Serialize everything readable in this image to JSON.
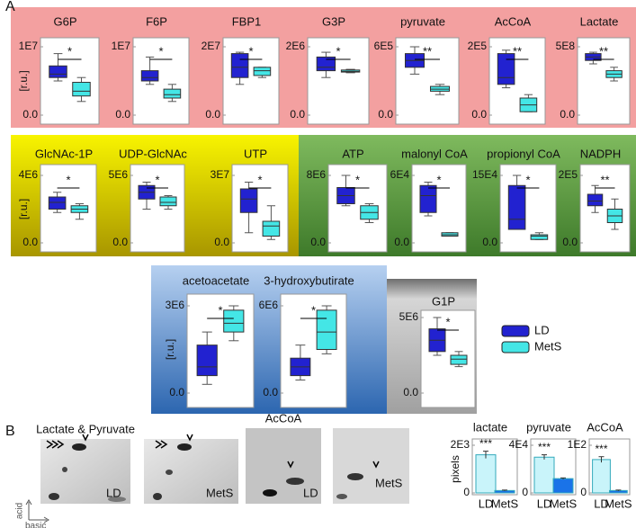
{
  "panels": [
    "A",
    "B"
  ],
  "legend": [
    {
      "name": "LD",
      "color": "#2222d0"
    },
    {
      "name": "MetS",
      "color": "#44e6e6"
    }
  ],
  "chart_data": [
    {
      "type": "box",
      "title": "G6P",
      "ylabel": "[r.u.]",
      "ylim": [
        0,
        10000000.0
      ],
      "yticks": [
        {
          "value": 0,
          "label": "0.0"
        },
        {
          "value": 10000000.0,
          "label": "1E7"
        }
      ],
      "sig": "*",
      "boxes": [
        {
          "whislo": 5000000.0,
          "q1": 5500000.0,
          "med": 6000000.0,
          "q3": 7200000.0,
          "whishi": 9000000.0
        },
        {
          "whislo": 2000000.0,
          "q1": 2800000.0,
          "med": 3500000.0,
          "q3": 4800000.0,
          "whishi": 5500000.0
        }
      ]
    },
    {
      "type": "box",
      "title": "F6P",
      "ylim": [
        0,
        10000000.0
      ],
      "yticks": [
        {
          "value": 0,
          "label": "0.0"
        },
        {
          "value": 10000000.0,
          "label": "1E7"
        }
      ],
      "sig": "*",
      "boxes": [
        {
          "whislo": 4500000.0,
          "q1": 5000000.0,
          "med": 5500000.0,
          "q3": 6500000.0,
          "whishi": 8500000.0
        },
        {
          "whislo": 2000000.0,
          "q1": 2500000.0,
          "med": 3000000.0,
          "q3": 3800000.0,
          "whishi": 4500000.0
        }
      ]
    },
    {
      "type": "box",
      "title": "FBP1",
      "ylim": [
        0,
        20000000.0
      ],
      "yticks": [
        {
          "value": 0,
          "label": "0.0"
        },
        {
          "value": 20000000.0,
          "label": "2E7"
        }
      ],
      "sig": "*",
      "boxes": [
        {
          "whislo": 9000000.0,
          "q1": 11000000.0,
          "med": 14000000.0,
          "q3": 18000000.0,
          "whishi": 18400000.0
        },
        {
          "whislo": 11000000.0,
          "q1": 11600000.0,
          "med": 13000000.0,
          "q3": 14000000.0,
          "whishi": 14000000.0
        }
      ]
    },
    {
      "type": "box",
      "title": "G3P",
      "ylim": [
        0,
        2000000.0
      ],
      "yticks": [
        {
          "value": 0,
          "label": "0.0"
        },
        {
          "value": 2000000.0,
          "label": "2E6"
        }
      ],
      "sig": "*",
      "boxes": [
        {
          "whislo": 1100000.0,
          "q1": 1300000.0,
          "med": 1400000.0,
          "q3": 1700000.0,
          "whishi": 1840000.0
        },
        {
          "whislo": 1240000.0,
          "q1": 1260000.0,
          "med": 1280000.0,
          "q3": 1320000.0,
          "whishi": 1340000.0
        }
      ]
    },
    {
      "type": "box",
      "title": "pyruvate",
      "ylim": [
        0,
        600000.0
      ],
      "yticks": [
        {
          "value": 0,
          "label": "0.0"
        },
        {
          "value": 600000.0,
          "label": "6E5"
        }
      ],
      "sig": "**",
      "boxes": [
        {
          "whislo": 360000.0,
          "q1": 420000.0,
          "med": 480000.0,
          "q3": 540000.0,
          "whishi": 600000.0
        },
        {
          "whislo": 180000.0,
          "q1": 210000.0,
          "med": 228000.0,
          "q3": 252000.0,
          "whishi": 270000.0
        }
      ]
    },
    {
      "type": "box",
      "title": "AcCoA",
      "ylim": [
        0,
        200000.0
      ],
      "yticks": [
        {
          "value": 0,
          "label": "0.0"
        },
        {
          "value": 200000.0,
          "label": "2E5"
        }
      ],
      "sig": "**",
      "boxes": [
        {
          "whislo": 80000.0,
          "q1": 90000.0,
          "med": 110000.0,
          "q3": 180000.0,
          "whishi": 190000.0
        },
        {
          "whislo": 10000.0,
          "q1": 10000.0,
          "med": 30000.0,
          "q3": 50000.0,
          "whishi": 60000.0
        }
      ]
    },
    {
      "type": "box",
      "title": "Lactate",
      "ylim": [
        0,
        500000000.0
      ],
      "yticks": [
        {
          "value": 0,
          "label": "0.0"
        },
        {
          "value": 500000000.0,
          "label": "5E8"
        }
      ],
      "sig": "**",
      "boxes": [
        {
          "whislo": 375000000.0,
          "q1": 400000000.0,
          "med": 425000000.0,
          "q3": 450000000.0,
          "whishi": 460000000.0
        },
        {
          "whislo": 250000000.0,
          "q1": 275000000.0,
          "med": 300000000.0,
          "q3": 325000000.0,
          "whishi": 350000000.0
        }
      ]
    },
    {
      "type": "box",
      "title": "GlcNAc-1P",
      "ylabel": "[r.u.]",
      "ylim": [
        0,
        4000000.0
      ],
      "yticks": [
        {
          "value": 0,
          "label": "0.0"
        },
        {
          "value": 4000000.0,
          "label": "4E6"
        }
      ],
      "sig": "*",
      "boxes": [
        {
          "whislo": 1800000.0,
          "q1": 2000000.0,
          "med": 2400000.0,
          "q3": 2720000.0,
          "whishi": 3000000.0
        },
        {
          "whislo": 1400000.0,
          "q1": 1800000.0,
          "med": 2000000.0,
          "q3": 2200000.0,
          "whishi": 2320000.0
        }
      ]
    },
    {
      "type": "box",
      "title": "UDP-GlcNAc",
      "ylim": [
        0,
        5000000.0
      ],
      "yticks": [
        {
          "value": 0,
          "label": "0.0"
        },
        {
          "value": 5000000.0,
          "label": "5E6"
        }
      ],
      "sig": "*",
      "boxes": [
        {
          "whislo": 2500000.0,
          "q1": 3250000.0,
          "med": 3750000.0,
          "q3": 4250000.0,
          "whishi": 4500000.0
        },
        {
          "whislo": 2500000.0,
          "q1": 2750000.0,
          "med": 3000000.0,
          "q3": 3400000.0,
          "whishi": 3500000.0
        }
      ]
    },
    {
      "type": "box",
      "title": "UTP",
      "ylim": [
        0,
        30000000.0
      ],
      "yticks": [
        {
          "value": 0,
          "label": "0.0"
        },
        {
          "value": 30000000.0,
          "label": "3E7"
        }
      ],
      "sig": "*",
      "boxes": [
        {
          "whislo": 4500000.0,
          "q1": 13500000.0,
          "med": 19500000.0,
          "q3": 24000000.0,
          "whishi": 27000000.0
        },
        {
          "whislo": 1500000.0,
          "q1": 3000000.0,
          "med": 7500000.0,
          "q3": 9600000.0,
          "whishi": 16500000.0
        }
      ]
    },
    {
      "type": "box",
      "title": "ATP",
      "ylim": [
        0,
        8000000.0
      ],
      "yticks": [
        {
          "value": 0,
          "label": "0.0"
        },
        {
          "value": 8000000.0,
          "label": "8E6"
        }
      ],
      "sig": "*",
      "boxes": [
        {
          "whislo": 4400000.0,
          "q1": 4640000.0,
          "med": 5600000.0,
          "q3": 6560000.0,
          "whishi": 8000000.0
        },
        {
          "whislo": 2400000.0,
          "q1": 2800000.0,
          "med": 3600000.0,
          "q3": 4400000.0,
          "whishi": 4640000.0
        }
      ]
    },
    {
      "type": "box",
      "title": "malonyl CoA",
      "ylim": [
        0,
        60000.0
      ],
      "yticks": [
        {
          "value": 0,
          "label": "0.0"
        },
        {
          "value": 60000.0,
          "label": "6E4"
        }
      ],
      "sig": "*",
      "boxes": [
        {
          "whislo": 24000.0,
          "q1": 27000.0,
          "med": 42000.0,
          "q3": 51000.0,
          "whishi": 54000.0
        },
        {
          "whislo": 6000.0,
          "q1": 6000.0,
          "med": 7200.0,
          "q3": 9000.0,
          "whishi": 9000.0
        }
      ]
    },
    {
      "type": "box",
      "title": "propionyl CoA",
      "ylim": [
        0,
        150000.0
      ],
      "yticks": [
        {
          "value": 0,
          "label": "0.0"
        },
        {
          "value": 150000.0,
          "label": "15E4"
        }
      ],
      "sig": "*",
      "boxes": [
        {
          "whislo": 30000.0,
          "q1": 30000.0,
          "med": 52500.0,
          "q3": 127500.0,
          "whishi": 150000.0
        },
        {
          "whislo": 7500.0,
          "q1": 7500.0,
          "med": 15000.0,
          "q3": 18000.0,
          "whishi": 22500.0
        }
      ]
    },
    {
      "type": "box",
      "title": "NADPH",
      "ylim": [
        0,
        200000.0
      ],
      "yticks": [
        {
          "value": 0,
          "label": "0.0"
        },
        {
          "value": 200000.0,
          "label": "2E5"
        }
      ],
      "sig": "**",
      "boxes": [
        {
          "whislo": 90000.0,
          "q1": 110000.0,
          "med": 124000.0,
          "q3": 144000.0,
          "whishi": 170000.0
        },
        {
          "whislo": 40000.0,
          "q1": 60000.0,
          "med": 80000.0,
          "q3": 100000.0,
          "whishi": 130000.0
        }
      ]
    },
    {
      "type": "box",
      "title": "acetoacetate",
      "ylabel": "[r.u.]",
      "ylim": [
        0,
        3000000.0
      ],
      "yticks": [
        {
          "value": 0,
          "label": "0.0"
        },
        {
          "value": 3000000.0,
          "label": "3E6"
        }
      ],
      "sig": "*",
      "boxes": [
        {
          "whislo": 300000.0,
          "q1": 600000.0,
          "med": 900000.0,
          "q3": 1650000.0,
          "whishi": 2100000.0
        },
        {
          "whislo": 1800000.0,
          "q1": 2100000.0,
          "med": 2400000.0,
          "q3": 2850000.0,
          "whishi": 3000000.0
        }
      ]
    },
    {
      "type": "box",
      "title": "3-hydroxybutirate",
      "ylim": [
        0,
        6000000.0
      ],
      "yticks": [
        {
          "value": 0,
          "label": "0.0"
        },
        {
          "value": 6000000.0,
          "label": "6E6"
        }
      ],
      "sig": "*",
      "boxes": [
        {
          "whislo": 900000.0,
          "q1": 1200000.0,
          "med": 1800000.0,
          "q3": 2400000.0,
          "whishi": 3300000.0
        },
        {
          "whislo": 2700000.0,
          "q1": 3000000.0,
          "med": 4200000.0,
          "q3": 5700000.0,
          "whishi": 6000000.0
        }
      ]
    },
    {
      "type": "box",
      "title": "G1P",
      "ylim": [
        0,
        5000000.0
      ],
      "yticks": [
        {
          "value": 0,
          "label": "0.0"
        },
        {
          "value": 5000000.0,
          "label": "5E6"
        }
      ],
      "sig": "*",
      "boxes": [
        {
          "whislo": 2500000.0,
          "q1": 2750000.0,
          "med": 3500000.0,
          "q3": 4250000.0,
          "whishi": 5000000.0
        },
        {
          "whislo": 1750000.0,
          "q1": 1900000.0,
          "med": 2250000.0,
          "q3": 2500000.0,
          "whishi": 2750000.0
        }
      ]
    },
    {
      "type": "bar",
      "title": "lactate",
      "ylabel": "pixels",
      "categories": [
        "LD",
        "MetS"
      ],
      "values": [
        1600,
        100
      ],
      "errors": [
        150,
        20
      ],
      "colors": [
        "#c9f4fa",
        "#1a73e8"
      ],
      "ylim": [
        0,
        2000
      ],
      "yticks": [
        0,
        {
          "value": 2000,
          "label": "2E3"
        }
      ],
      "sig": "***"
    },
    {
      "type": "bar",
      "title": "pyruvate",
      "categories": [
        "LD",
        "MetS"
      ],
      "values": [
        30000,
        12000
      ],
      "errors": [
        2000,
        600
      ],
      "colors": [
        "#c9f4fa",
        "#1a73e8"
      ],
      "ylim": [
        0,
        40000
      ],
      "yticks": [
        0,
        {
          "value": 40000,
          "label": "4E4"
        }
      ],
      "sig": "***"
    },
    {
      "type": "bar",
      "title": "AcCoA",
      "categories": [
        "LD",
        "MetS"
      ],
      "values": [
        70,
        5
      ],
      "errors": [
        6,
        1
      ],
      "colors": [
        "#c9f4fa",
        "#1a73e8"
      ],
      "ylim": [
        0,
        100
      ],
      "yticks": [
        0,
        {
          "value": 100,
          "label": "1E2"
        }
      ],
      "sig": "***"
    }
  ],
  "gels": {
    "titles": [
      "Lactate & Pyruvate",
      "AcCoA"
    ],
    "labels": [
      "LD",
      "MetS",
      "LD",
      "MetS"
    ],
    "axes": [
      "acid",
      "basic"
    ]
  }
}
